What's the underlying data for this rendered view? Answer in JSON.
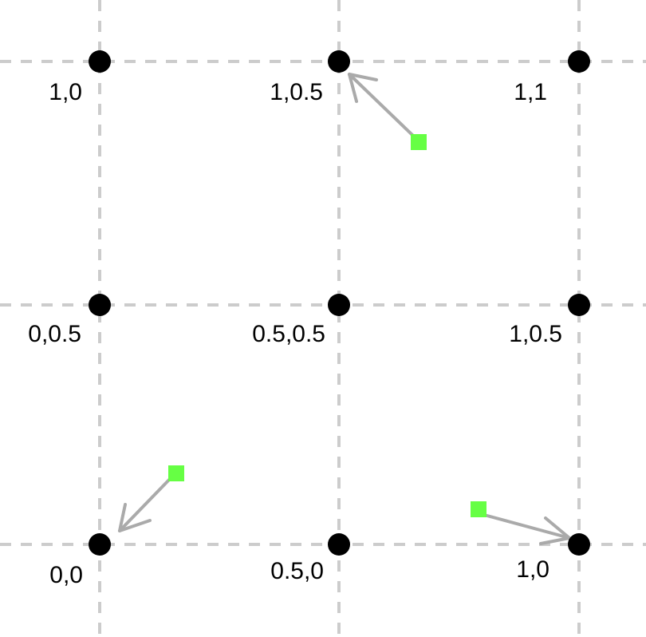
{
  "colors": {
    "background": "#ffffff",
    "grid": "#cccccc",
    "point": "#000000",
    "sample": "#66ff44",
    "arrow": "#aaaaaa"
  },
  "grid_points": [
    {
      "label": "1,0"
    },
    {
      "label": "1,0.5"
    },
    {
      "label": "1,1"
    },
    {
      "label": "0,0.5"
    },
    {
      "label": "0.5,0.5"
    },
    {
      "label": "1,0.5"
    },
    {
      "label": "0,0"
    },
    {
      "label": "0.5,0"
    },
    {
      "label": "1,0"
    }
  ]
}
